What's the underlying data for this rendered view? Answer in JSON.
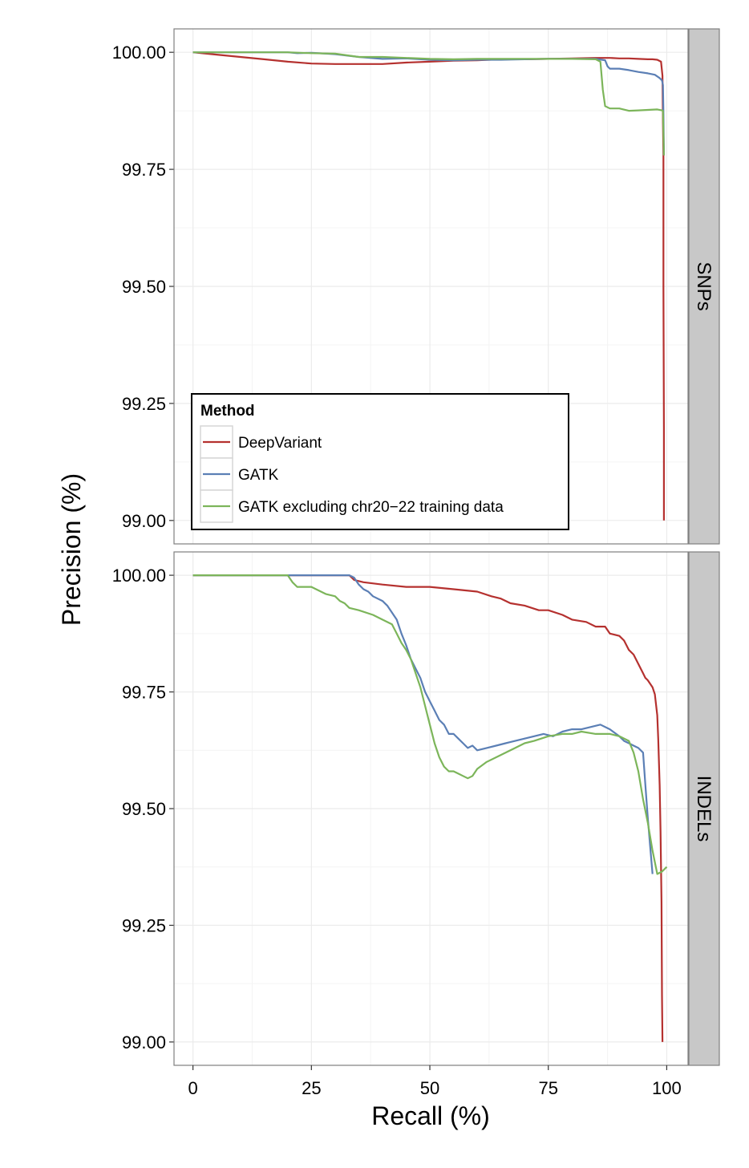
{
  "chart_data": {
    "type": "line",
    "xlabel": "Recall (%)",
    "ylabel": "Precision (%)",
    "xlim": [
      -4,
      104.5
    ],
    "ylim": [
      98.95,
      100.05
    ],
    "x_ticks": [
      "0",
      "25",
      "50",
      "75",
      "100"
    ],
    "y_ticks": [
      "99.00",
      "99.25",
      "99.50",
      "99.75",
      "100.00"
    ],
    "grid": true,
    "legend": {
      "title": "Method",
      "placement": "bottom-left of top panel",
      "entries": [
        "DeepVariant",
        "GATK",
        "GATK excluding chr20−22 training data"
      ]
    },
    "colors": {
      "DeepVariant": "#b5312f",
      "GATK": "#5b7fb5",
      "GATK excluding chr20-22 training data": "#7cb55a",
      "strip": "#c8c8c8",
      "grid": "#ebebeb"
    },
    "panels": [
      {
        "strip": "SNPs",
        "series": [
          {
            "name": "DeepVariant",
            "x": [
              0,
              5,
              10,
              15,
              20,
              25,
              30,
              35,
              40,
              45,
              50,
              55,
              60,
              65,
              70,
              75,
              80,
              85,
              88,
              90,
              92,
              94,
              96,
              97,
              98,
              98.8,
              99.1,
              99.2,
              99.3,
              99.3,
              99.4,
              99.4
            ],
            "y": [
              100.0,
              99.995,
              99.99,
              99.985,
              99.98,
              99.976,
              99.975,
              99.975,
              99.975,
              99.978,
              99.98,
              99.982,
              99.983,
              99.985,
              99.985,
              99.986,
              99.987,
              99.988,
              99.988,
              99.987,
              99.987,
              99.986,
              99.985,
              99.985,
              99.984,
              99.98,
              99.95,
              99.85,
              99.78,
              99.5,
              99.2,
              99.0
            ]
          },
          {
            "name": "GATK",
            "x": [
              0,
              10,
              20,
              22,
              25,
              30,
              35,
              40,
              45,
              50,
              55,
              60,
              65,
              70,
              75,
              80,
              85,
              87,
              87.5,
              88,
              90,
              92,
              94,
              96,
              97.5,
              98.5,
              99,
              99.2,
              99.3,
              99.4
            ],
            "y": [
              100.0,
              100.0,
              100.0,
              99.998,
              99.999,
              99.996,
              99.99,
              99.986,
              99.987,
              99.984,
              99.983,
              99.984,
              99.984,
              99.985,
              99.986,
              99.986,
              99.986,
              99.983,
              99.97,
              99.965,
              99.965,
              99.962,
              99.958,
              99.955,
              99.952,
              99.945,
              99.94,
              99.93,
              99.87,
              99.78
            ]
          },
          {
            "name": "GATK excluding chr20−22 training data",
            "x": [
              0,
              10,
              20,
              25,
              30,
              35,
              40,
              45,
              50,
              55,
              60,
              65,
              70,
              75,
              80,
              85,
              86,
              86.5,
              87,
              88,
              90,
              92,
              94,
              96,
              98,
              99,
              99.2,
              99.3,
              99.4
            ],
            "y": [
              100.0,
              100.0,
              100.0,
              99.998,
              99.997,
              99.99,
              99.99,
              99.988,
              99.986,
              99.985,
              99.986,
              99.986,
              99.986,
              99.986,
              99.986,
              99.985,
              99.98,
              99.92,
              99.885,
              99.88,
              99.88,
              99.875,
              99.876,
              99.877,
              99.878,
              99.876,
              99.875,
              99.83,
              99.78
            ]
          }
        ]
      },
      {
        "strip": "INDELs",
        "series": [
          {
            "name": "DeepVariant",
            "x": [
              0,
              10,
              20,
              30,
              33,
              34,
              36,
              40,
              45,
              50,
              55,
              60,
              63,
              65,
              67,
              70,
              73,
              75,
              78,
              80,
              83,
              85,
              87,
              88,
              90,
              91,
              92,
              93,
              94,
              95,
              95.5,
              96,
              97,
              97.5,
              98,
              98.2,
              98.5,
              98.7,
              98.9,
              99.0,
              99.1
            ],
            "y": [
              100.0,
              100.0,
              100.0,
              100.0,
              100.0,
              99.99,
              99.985,
              99.98,
              99.975,
              99.975,
              99.97,
              99.965,
              99.955,
              99.95,
              99.94,
              99.935,
              99.925,
              99.925,
              99.915,
              99.905,
              99.9,
              99.89,
              99.89,
              99.875,
              99.87,
              99.86,
              99.84,
              99.83,
              99.81,
              99.79,
              99.78,
              99.775,
              99.76,
              99.745,
              99.7,
              99.65,
              99.55,
              99.45,
              99.3,
              99.1,
              99.0
            ]
          },
          {
            "name": "GATK",
            "x": [
              0,
              10,
              20,
              25,
              30,
              33,
              34,
              35,
              36,
              37,
              38,
              40,
              41,
              42,
              43,
              44,
              45,
              46,
              47,
              48,
              49,
              50,
              51,
              52,
              53,
              54,
              55,
              56,
              57,
              58,
              59,
              60,
              62,
              64,
              66,
              68,
              70,
              72,
              74,
              76,
              78,
              80,
              82,
              84,
              86,
              88,
              90,
              91,
              92,
              93,
              94,
              95,
              95.5,
              96,
              96.5,
              97
            ],
            "y": [
              100.0,
              100.0,
              100.0,
              100.0,
              100.0,
              100.0,
              99.995,
              99.98,
              99.97,
              99.965,
              99.955,
              99.945,
              99.935,
              99.92,
              99.905,
              99.875,
              99.85,
              99.82,
              99.8,
              99.78,
              99.75,
              99.73,
              99.71,
              99.69,
              99.68,
              99.66,
              99.66,
              99.65,
              99.64,
              99.63,
              99.635,
              99.625,
              99.63,
              99.635,
              99.64,
              99.645,
              99.65,
              99.655,
              99.66,
              99.655,
              99.665,
              99.67,
              99.67,
              99.675,
              99.68,
              99.67,
              99.655,
              99.645,
              99.64,
              99.635,
              99.63,
              99.62,
              99.55,
              99.48,
              99.42,
              99.36
            ]
          },
          {
            "name": "GATK excluding chr20−22 training data",
            "x": [
              0,
              10,
              20,
              21,
              22,
              25,
              28,
              30,
              31,
              32,
              33,
              35,
              38,
              40,
              42,
              43,
              44,
              45,
              46,
              47,
              48,
              49,
              50,
              51,
              52,
              53,
              54,
              55,
              56,
              57,
              58,
              59,
              60,
              62,
              65,
              68,
              70,
              72,
              75,
              78,
              80,
              82,
              85,
              88,
              90,
              92,
              93,
              94,
              95,
              96,
              97,
              98,
              99,
              100
            ],
            "y": [
              100.0,
              100.0,
              100.0,
              99.985,
              99.975,
              99.975,
              99.96,
              99.955,
              99.945,
              99.94,
              99.93,
              99.925,
              99.915,
              99.905,
              99.895,
              99.875,
              99.855,
              99.84,
              99.82,
              99.79,
              99.76,
              99.72,
              99.68,
              99.64,
              99.61,
              99.59,
              99.58,
              99.58,
              99.575,
              99.57,
              99.565,
              99.57,
              99.585,
              99.6,
              99.615,
              99.63,
              99.64,
              99.645,
              99.655,
              99.66,
              99.66,
              99.665,
              99.66,
              99.66,
              99.655,
              99.645,
              99.62,
              99.58,
              99.52,
              99.47,
              99.41,
              99.36,
              99.365,
              99.375
            ]
          }
        ]
      }
    ]
  }
}
